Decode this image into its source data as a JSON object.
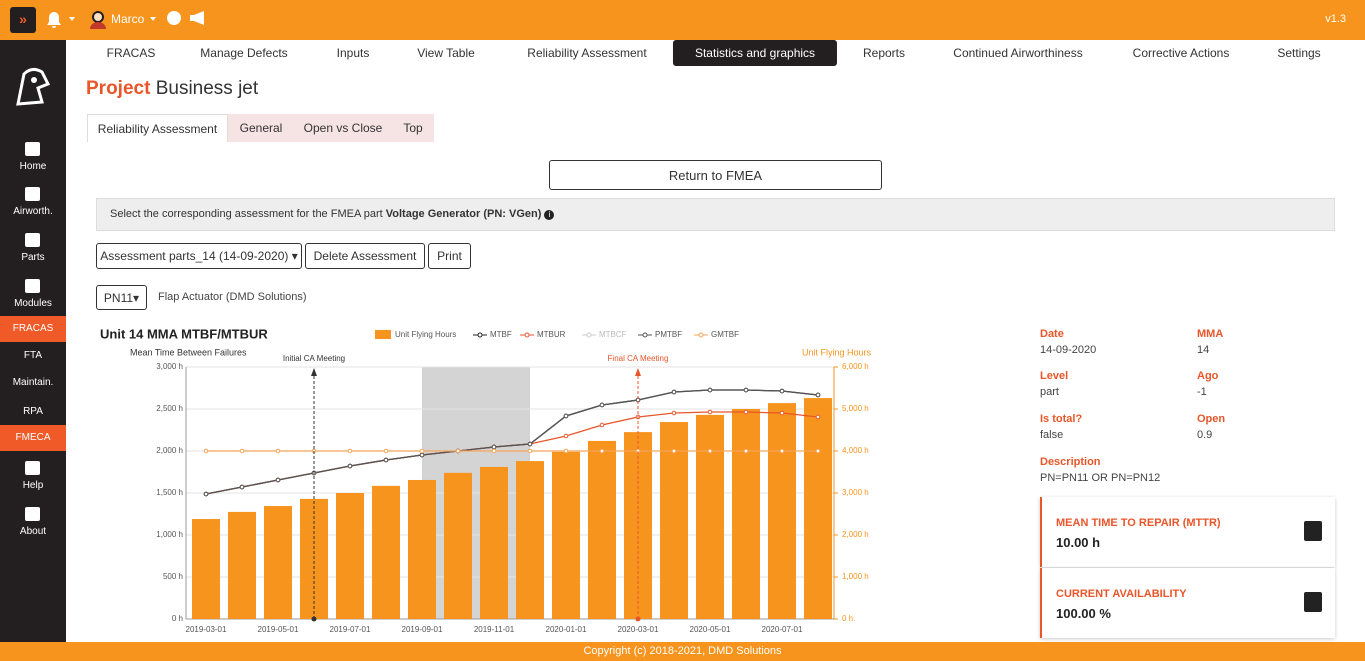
{
  "topbar": {
    "user": "Marco",
    "version": "v1.3"
  },
  "nav": [
    "FRACAS",
    "Manage Defects",
    "Inputs",
    "View Table",
    "Reliability Assessment",
    "Statistics and graphics",
    "Reports",
    "Continued Airworthiness",
    "Corrective Actions",
    "Settings"
  ],
  "sidebar": [
    "Home",
    "Airworth.",
    "Parts",
    "Modules",
    "FRACAS",
    "FTA",
    "Maintain.",
    "RPA",
    "FMECA",
    "Help",
    "About"
  ],
  "page_title": {
    "prefix": "Project",
    "name": "Business jet"
  },
  "subtabs": [
    "Reliability Assessment",
    "General",
    "Open vs Close",
    "Top"
  ],
  "return_button": "Return to FMEA",
  "info": {
    "text": "Select the corresponding assessment for the FMEA part",
    "part": "Voltage Generator (PN: VGen)"
  },
  "toolbar": {
    "assessment": "Assessment parts_14 (14-09-2020)",
    "delete": "Delete Assessment",
    "print": "Print"
  },
  "part_select": {
    "pn": "PN11",
    "description": "Flap Actuator (DMD Solutions)"
  },
  "chart_data": {
    "type": "combo",
    "title": "Unit 14 MMA MTBF/MTBUR",
    "y_label": "Mean Time Between Failures",
    "y2_label": "Unit Flying Hours",
    "categories": [
      "2019-03-01",
      null,
      "2019-05-01",
      null,
      "2019-07-01",
      null,
      "2019-09-01",
      null,
      "2019-11-01",
      null,
      "2020-01-01",
      null,
      "2020-03-01",
      null,
      "2020-05-01",
      null,
      "2020-07-01",
      null
    ],
    "ylim": [
      0,
      3000
    ],
    "yticks": [
      {
        "value": 0,
        "label": "0 h"
      },
      {
        "value": 500,
        "label": "500 h"
      },
      {
        "value": 1000,
        "label": "1,000 h"
      },
      {
        "value": 1500,
        "label": "1,500 h"
      },
      {
        "value": 2000,
        "label": "2,000 h"
      },
      {
        "value": 2500,
        "label": "2,500 h"
      },
      {
        "value": 3000,
        "label": "3,000 h"
      }
    ],
    "y2lim": [
      0,
      6000
    ],
    "y2ticks": [
      {
        "value": 0,
        "label": "0 h."
      },
      {
        "value": 1000,
        "label": "1,000 h"
      },
      {
        "value": 2000,
        "label": "2,000 h"
      },
      {
        "value": 3000,
        "label": "3,000 h"
      },
      {
        "value": 4000,
        "label": "4,000 h"
      },
      {
        "value": 5000,
        "label": "5,000 h"
      },
      {
        "value": 6000,
        "label": "6,000 h"
      }
    ],
    "grid": true,
    "shaded_range": [
      6,
      9
    ],
    "annotations": [
      {
        "text": "Initial CA Meeting",
        "index": 3,
        "color": "#333333"
      },
      {
        "text": "Final CA Meeting",
        "index": 12,
        "color": "#e8562a"
      }
    ],
    "series": [
      {
        "name": "Unit Flying Hours",
        "type": "bar",
        "axis": "y2",
        "color": "#f7941d",
        "values": [
          2380,
          2550,
          2690,
          2860,
          3000,
          3170,
          3310,
          3480,
          3620,
          3760,
          3980,
          4240,
          4450,
          4690,
          4860,
          5000,
          5140,
          5260
        ]
      },
      {
        "name": "MTBF",
        "type": "line",
        "color": "#222222",
        "values": [
          1488,
          1571,
          1655,
          1738,
          1821,
          1893,
          1952,
          2000,
          2048,
          2083,
          2417,
          2548,
          2607,
          2702,
          2726,
          2726,
          2714,
          2667
        ]
      },
      {
        "name": "MTBUR",
        "type": "line",
        "color": "#e8562a",
        "values": [
          1488,
          1571,
          1655,
          1738,
          1821,
          1893,
          1952,
          2000,
          2048,
          2083,
          2179,
          2310,
          2405,
          2452,
          2464,
          2464,
          2452,
          2405
        ]
      },
      {
        "name": "MTBCF",
        "type": "line",
        "color": "#cccccc",
        "hidden": true,
        "values": [
          null,
          null,
          null,
          null,
          null,
          null,
          null,
          null,
          null,
          null,
          null,
          null,
          null,
          null,
          null,
          null,
          null,
          null
        ]
      },
      {
        "name": "PMTBF",
        "type": "line",
        "color": "#555555",
        "values": [
          1488,
          1571,
          1655,
          1738,
          1821,
          1893,
          1952,
          2000,
          2048,
          2083,
          2417,
          2548,
          2607,
          2702,
          2726,
          2726,
          2714,
          2667
        ]
      },
      {
        "name": "GMTBF",
        "type": "line",
        "color": "#f5a55a",
        "values": [
          2000,
          2000,
          2000,
          2000,
          2000,
          2000,
          2000,
          2000,
          2000,
          2000,
          2000,
          2000,
          2000,
          2000,
          2000,
          2000,
          2000,
          2000
        ]
      }
    ]
  },
  "details": [
    {
      "label": "Date",
      "value": "14-09-2020"
    },
    {
      "label": "MMA",
      "value": "14"
    },
    {
      "label": "Level",
      "value": "part"
    },
    {
      "label": "Ago",
      "value": "-1"
    },
    {
      "label": "Is total?",
      "value": "false"
    },
    {
      "label": "Open",
      "value": "0.9"
    },
    {
      "label": "Description",
      "value": "PN=PN11 OR PN=PN12"
    }
  ],
  "cards": [
    {
      "label": "MEAN TIME TO REPAIR (MTTR)",
      "value": "10.00 h"
    },
    {
      "label": "CURRENT AVAILABILITY",
      "value": "100.00 %"
    }
  ],
  "footer": "Copyright (c) 2018-2021, DMD Solutions"
}
